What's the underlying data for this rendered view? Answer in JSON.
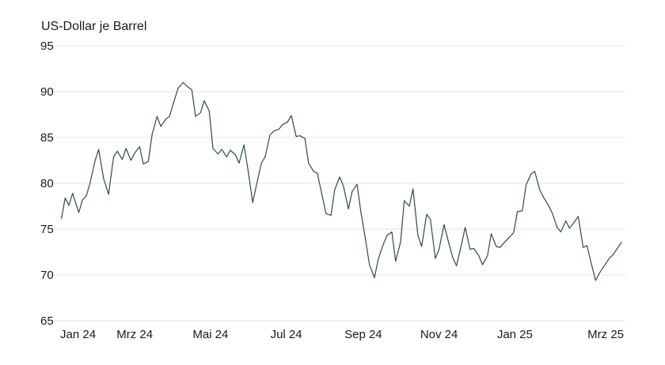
{
  "chart_data": {
    "type": "line",
    "title": "",
    "ylabel": "US-Dollar je Barrel",
    "xlabel": "",
    "ylim": [
      65,
      95
    ],
    "yticks": [
      65,
      70,
      75,
      80,
      85,
      90,
      95
    ],
    "xlim": [
      "2024-01-01",
      "2025-03-31"
    ],
    "xticks": [
      {
        "label": "Jan 24",
        "date": "2024-01-01"
      },
      {
        "label": "Mrz 24",
        "date": "2024-03-01"
      },
      {
        "label": "Mai 24",
        "date": "2024-05-01"
      },
      {
        "label": "Jul 24",
        "date": "2024-07-01"
      },
      {
        "label": "Sep 24",
        "date": "2024-09-01"
      },
      {
        "label": "Nov 24",
        "date": "2024-11-01"
      },
      {
        "label": "Jan 25",
        "date": "2025-01-01"
      },
      {
        "label": "Mrz 25",
        "date": "2025-03-01"
      }
    ],
    "grid": "horizontal",
    "colors": {
      "line": "#2f4a4a",
      "grid": "#e6e6e6"
    },
    "series": [
      {
        "x": [
          "2024-01-02",
          "2024-01-05",
          "2024-01-08",
          "2024-01-11",
          "2024-01-16",
          "2024-01-19",
          "2024-01-22",
          "2024-01-25",
          "2024-01-29",
          "2024-02-01",
          "2024-02-05",
          "2024-02-09",
          "2024-02-13",
          "2024-02-16",
          "2024-02-20",
          "2024-02-23",
          "2024-02-27",
          "2024-03-01",
          "2024-03-05",
          "2024-03-08",
          "2024-03-12",
          "2024-03-15",
          "2024-03-19",
          "2024-03-22",
          "2024-03-26",
          "2024-03-29",
          "2024-04-02",
          "2024-04-05",
          "2024-04-09",
          "2024-04-12",
          "2024-04-16",
          "2024-04-19",
          "2024-04-23",
          "2024-04-26",
          "2024-04-30",
          "2024-05-03",
          "2024-05-07",
          "2024-05-10",
          "2024-05-14",
          "2024-05-17",
          "2024-05-21",
          "2024-05-24",
          "2024-05-28",
          "2024-05-31",
          "2024-06-04",
          "2024-06-07",
          "2024-06-11",
          "2024-06-14",
          "2024-06-18",
          "2024-06-21",
          "2024-06-25",
          "2024-06-28",
          "2024-07-02",
          "2024-07-05",
          "2024-07-09",
          "2024-07-12",
          "2024-07-16",
          "2024-07-19",
          "2024-07-23",
          "2024-07-26",
          "2024-07-30",
          "2024-08-02",
          "2024-08-06",
          "2024-08-09",
          "2024-08-13",
          "2024-08-16",
          "2024-08-20",
          "2024-08-23",
          "2024-08-27",
          "2024-08-30",
          "2024-09-03",
          "2024-09-06",
          "2024-09-10",
          "2024-09-13",
          "2024-09-17",
          "2024-09-20",
          "2024-09-24",
          "2024-09-27",
          "2024-10-01",
          "2024-10-04",
          "2024-10-08",
          "2024-10-11",
          "2024-10-15",
          "2024-10-18",
          "2024-10-22",
          "2024-10-25",
          "2024-10-29",
          "2024-11-01",
          "2024-11-05",
          "2024-11-08",
          "2024-11-12",
          "2024-11-15",
          "2024-11-19",
          "2024-11-22",
          "2024-11-26",
          "2024-11-29",
          "2024-12-03",
          "2024-12-06",
          "2024-12-10",
          "2024-12-13",
          "2024-12-17",
          "2024-12-20",
          "2024-12-24",
          "2024-12-31",
          "2025-01-03",
          "2025-01-07",
          "2025-01-10",
          "2025-01-14",
          "2025-01-17",
          "2025-01-21",
          "2025-01-24",
          "2025-01-28",
          "2025-01-31",
          "2025-02-04",
          "2025-02-07",
          "2025-02-11",
          "2025-02-14",
          "2025-02-18",
          "2025-02-21",
          "2025-02-25",
          "2025-02-28",
          "2025-03-04",
          "2025-03-07",
          "2025-03-11",
          "2025-03-14",
          "2025-03-18",
          "2025-03-21",
          "2025-03-25",
          "2025-03-28"
        ],
        "values": [
          76.1,
          78.4,
          77.6,
          78.9,
          76.8,
          78.2,
          78.6,
          80.0,
          82.4,
          83.7,
          80.5,
          78.8,
          82.9,
          83.5,
          82.6,
          83.8,
          82.5,
          83.3,
          84.0,
          82.1,
          82.4,
          85.3,
          87.3,
          86.2,
          87.0,
          87.3,
          89.1,
          90.4,
          91.0,
          90.6,
          90.2,
          87.3,
          87.7,
          89.0,
          87.9,
          83.8,
          83.2,
          83.7,
          82.9,
          83.6,
          83.1,
          82.2,
          84.2,
          81.6,
          77.9,
          79.8,
          82.2,
          82.9,
          85.3,
          85.7,
          85.9,
          86.4,
          86.7,
          87.4,
          85.1,
          85.2,
          84.9,
          82.2,
          81.3,
          81.1,
          78.6,
          76.7,
          76.5,
          79.3,
          80.7,
          79.7,
          77.2,
          79.1,
          79.9,
          76.9,
          73.7,
          71.1,
          69.7,
          71.7,
          73.3,
          74.3,
          74.7,
          71.5,
          73.6,
          78.1,
          77.5,
          79.4,
          74.3,
          73.1,
          76.6,
          76.1,
          71.8,
          72.8,
          75.5,
          73.9,
          71.9,
          71.0,
          73.3,
          75.2,
          72.8,
          72.9,
          72.1,
          71.1,
          72.1,
          74.5,
          73.1,
          73.0,
          73.6,
          74.6,
          76.9,
          77.0,
          79.8,
          81.0,
          81.3,
          79.3,
          78.5,
          77.6,
          76.8,
          75.2,
          74.7,
          75.9,
          75.1,
          75.8,
          76.4,
          73.0,
          73.2,
          71.0,
          69.4,
          70.4,
          71.0,
          71.8,
          72.2,
          73.0,
          73.6
        ],
        "y": [
          76.1,
          78.4,
          77.6,
          78.9,
          76.8,
          78.2,
          78.6,
          80.0,
          82.4,
          83.7,
          80.5,
          78.8,
          82.9,
          83.5,
          82.6,
          83.8,
          82.5,
          83.3,
          84.0,
          82.1,
          82.4,
          85.3,
          87.3,
          86.2,
          87.0,
          87.3,
          89.1,
          90.4,
          91.0,
          90.6,
          90.2,
          87.3,
          87.7,
          89.0,
          87.9,
          83.8,
          83.2,
          83.7,
          82.9,
          83.6,
          83.1,
          82.2,
          84.2,
          81.6,
          77.9,
          79.8,
          82.2,
          82.9,
          85.3,
          85.7,
          85.9,
          86.4,
          86.7,
          87.4,
          85.1,
          85.2,
          84.9,
          82.2,
          81.3,
          81.1,
          78.6,
          76.7,
          76.5,
          79.3,
          80.7,
          79.7,
          77.2,
          79.1,
          79.9,
          76.9,
          73.7,
          71.1,
          69.7,
          71.7,
          73.3,
          74.3,
          74.7,
          71.5,
          73.6,
          78.1,
          77.5,
          79.4,
          74.3,
          73.1,
          76.6,
          76.1,
          71.8,
          72.8,
          75.5,
          73.9,
          71.9,
          71.0,
          73.3,
          75.2,
          72.8,
          72.9,
          72.1,
          71.1,
          72.1,
          74.5,
          73.1,
          73.0,
          73.6,
          74.6,
          76.9,
          77.0,
          79.8,
          81.0,
          81.3,
          79.3,
          78.5,
          77.6,
          76.8,
          75.2,
          74.7,
          75.9,
          75.1,
          75.8,
          76.4,
          73.0,
          73.2,
          71.0,
          69.4,
          70.4,
          71.0,
          71.8,
          72.2,
          73.0,
          73.6
        ]
      }
    ]
  }
}
